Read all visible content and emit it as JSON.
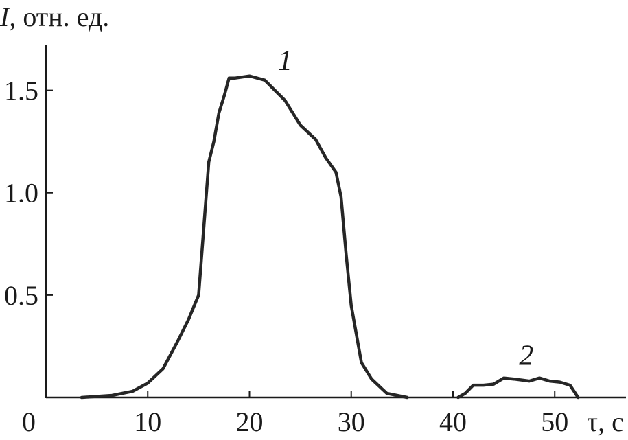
{
  "chart_data": {
    "type": "line",
    "title": "",
    "ylabel_symbol": "I",
    "ylabel_rest": ", отн. ед.",
    "xlabel": "τ, с",
    "xlim": [
      0,
      57
    ],
    "ylim": [
      0,
      1.72
    ],
    "x_ticks": [
      0,
      10,
      20,
      30,
      40,
      50
    ],
    "x_tick_labels": [
      "0",
      "10",
      "20",
      "30",
      "40",
      "50"
    ],
    "y_ticks": [
      0.5,
      1.0,
      1.5
    ],
    "y_tick_labels": [
      "0.5",
      "1.0",
      "1.5"
    ],
    "grid": false,
    "legend": "none",
    "line_color": "#262626",
    "series": [
      {
        "label": "1",
        "x": [
          3.5,
          5.0,
          6.5,
          7.5,
          8.5,
          10.0,
          11.5,
          13.0,
          14.0,
          15.0,
          16.0,
          16.5,
          17.0,
          17.5,
          18.0,
          18.6,
          20.0,
          21.5,
          23.5,
          25.0,
          26.5,
          27.5,
          28.5,
          29.0,
          29.5,
          30.0,
          31.0,
          32.0,
          33.5,
          35.5
        ],
        "y": [
          0.0,
          0.005,
          0.01,
          0.02,
          0.03,
          0.07,
          0.14,
          0.28,
          0.38,
          0.5,
          1.15,
          1.25,
          1.39,
          1.47,
          1.56,
          1.56,
          1.57,
          1.55,
          1.45,
          1.33,
          1.26,
          1.17,
          1.1,
          0.98,
          0.7,
          0.45,
          0.17,
          0.09,
          0.02,
          0.0
        ]
      },
      {
        "label": "2",
        "x": [
          40.5,
          41.2,
          42.0,
          43.0,
          44.0,
          45.0,
          46.0,
          47.5,
          48.5,
          49.5,
          50.5,
          51.5,
          52.3
        ],
        "y": [
          0.0,
          0.02,
          0.06,
          0.06,
          0.065,
          0.095,
          0.09,
          0.08,
          0.095,
          0.08,
          0.075,
          0.06,
          0.0
        ]
      }
    ],
    "series_label_positions": [
      {
        "label": "1",
        "x": 23.5,
        "y": 1.6
      },
      {
        "label": "2",
        "x": 47.2,
        "y": 0.16
      }
    ]
  }
}
